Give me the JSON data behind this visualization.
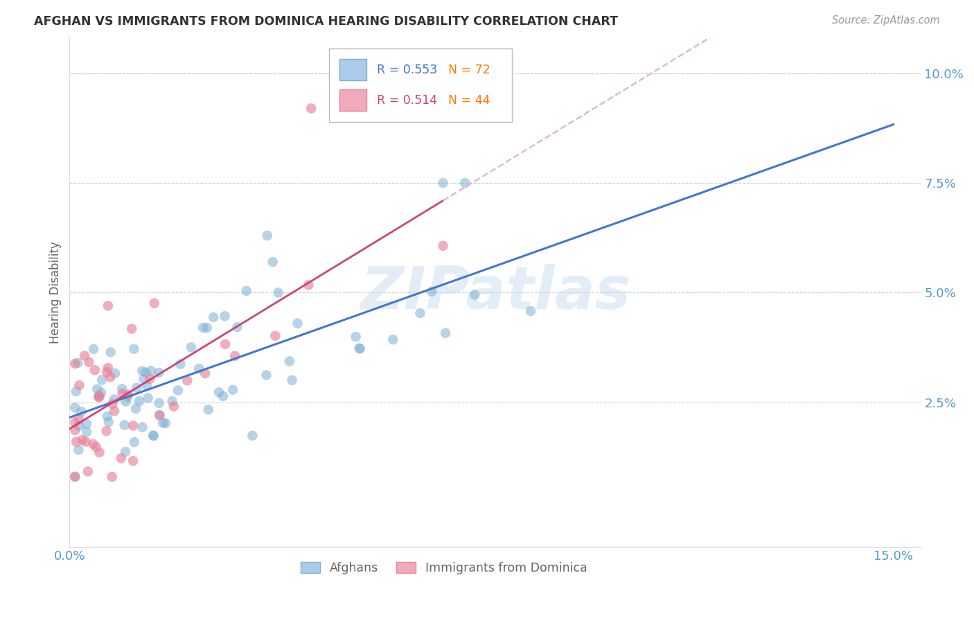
{
  "title": "AFGHAN VS IMMIGRANTS FROM DOMINICA HEARING DISABILITY CORRELATION CHART",
  "source": "Source: ZipAtlas.com",
  "ylabel": "Hearing Disability",
  "xlim": [
    0.0,
    0.155
  ],
  "ylim": [
    -0.008,
    0.108
  ],
  "yticks": [
    0.0,
    0.025,
    0.05,
    0.075,
    0.1
  ],
  "ytick_labels": [
    "",
    "2.5%",
    "5.0%",
    "7.5%",
    "10.0%"
  ],
  "xticks": [
    0.0,
    0.025,
    0.05,
    0.075,
    0.1,
    0.125,
    0.15
  ],
  "xtick_labels": [
    "0.0%",
    "",
    "",
    "",
    "",
    "",
    "15.0%"
  ],
  "afghans_color": "#7bafd4",
  "afghans_face": "#aacce8",
  "dominica_color": "#e8829a",
  "dominica_face": "#f0aab8",
  "trend_afghan_color": "#4477cc",
  "trend_dominica_solid_color": "#cc4477",
  "trend_dominica_dashed_color": "#ddbbcc",
  "watermark_color": "#c8ddf0",
  "watermark_text": "ZIPatlas",
  "legend_r_afghan": "0.553",
  "legend_n_afghan": "72",
  "legend_r_dominica": "0.514",
  "legend_n_dominica": "44",
  "legend_r_color_afghan": "#4477cc",
  "legend_n_color": "#ff7700",
  "legend_r_color_dominica": "#cc4477",
  "background_color": "#ffffff",
  "grid_color": "#cccccc",
  "title_color": "#333333",
  "axis_tick_color": "#5599cc",
  "ylabel_color": "#666666",
  "source_color": "#999999",
  "bottom_legend_text_color": "#666666"
}
